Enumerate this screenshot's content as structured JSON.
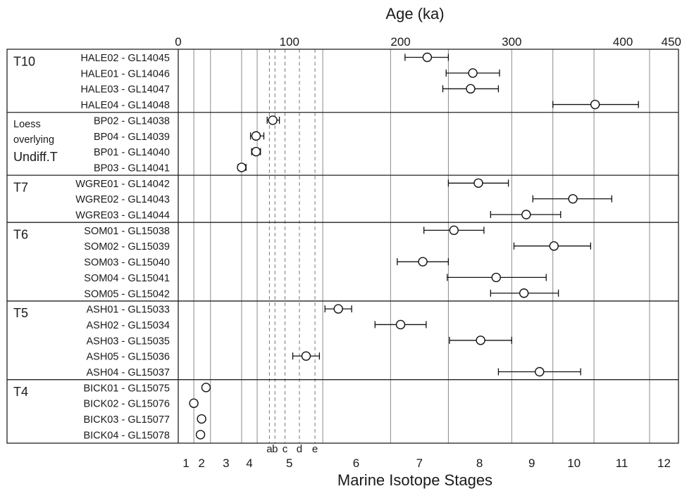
{
  "chart_data": {
    "type": "scatter",
    "title": "",
    "xlabel_top": "Age (ka)",
    "xlabel_bottom": "Marine Isotope Stages",
    "xlim": [
      0,
      450
    ],
    "x_ticks": [
      {
        "value": 0,
        "label": "0"
      },
      {
        "value": 100,
        "label": "100"
      },
      {
        "value": 200,
        "label": "200"
      },
      {
        "value": 300,
        "label": "300"
      },
      {
        "value": 400,
        "label": "400"
      },
      {
        "value": 450,
        "label": "450"
      }
    ],
    "mis_boundaries": [
      14,
      29,
      57,
      71,
      130,
      191,
      243,
      300,
      337,
      374,
      424
    ],
    "mis_labels": [
      {
        "label": "1",
        "x": 7
      },
      {
        "label": "2",
        "x": 21
      },
      {
        "label": "3",
        "x": 43
      },
      {
        "label": "4",
        "x": 64
      },
      {
        "label": "5",
        "x": 100
      },
      {
        "label": "6",
        "x": 160
      },
      {
        "label": "7",
        "x": 217
      },
      {
        "label": "8",
        "x": 271
      },
      {
        "label": "9",
        "x": 318
      },
      {
        "label": "10",
        "x": 356
      },
      {
        "label": "11",
        "x": 399
      },
      {
        "label": "12",
        "x": 437
      }
    ],
    "substage_markers": [
      {
        "label": "a",
        "x": 82
      },
      {
        "label": "b",
        "x": 87
      },
      {
        "label": "c",
        "x": 96
      },
      {
        "label": "d",
        "x": 109
      },
      {
        "label": "e",
        "x": 123
      }
    ],
    "groups": [
      {
        "name": "T10",
        "samples": [
          {
            "label": "HALE02 - GL14045",
            "age": 224,
            "err_low": 204,
            "err_high": 243
          },
          {
            "label": "HALE01 - GL14046",
            "age": 265,
            "err_low": 241,
            "err_high": 289
          },
          {
            "label": "HALE03 - GL14047",
            "age": 263,
            "err_low": 238,
            "err_high": 288
          },
          {
            "label": "HALE04 - GL14048",
            "age": 375,
            "err_low": 337,
            "err_high": 414
          }
        ]
      },
      {
        "name": [
          "Loess",
          "overlying",
          "Undiff.T"
        ],
        "samples": [
          {
            "label": "BP02 - GL14038",
            "age": 85,
            "err_low": 80,
            "err_high": 91
          },
          {
            "label": "BP04 - GL14039",
            "age": 70,
            "err_low": 65,
            "err_high": 77
          },
          {
            "label": "BP01 - GL14040",
            "age": 70,
            "err_low": 66,
            "err_high": 74
          },
          {
            "label": "BP03 - GL14041",
            "age": 57,
            "err_low": 54,
            "err_high": 61
          }
        ]
      },
      {
        "name": "T7",
        "samples": [
          {
            "label": "WGRE01 - GL14042",
            "age": 270,
            "err_low": 243,
            "err_high": 297
          },
          {
            "label": "WGRE02 - GL14043",
            "age": 355,
            "err_low": 319,
            "err_high": 390
          },
          {
            "label": "WGRE03 - GL14044",
            "age": 313,
            "err_low": 281,
            "err_high": 344
          }
        ]
      },
      {
        "name": "T6",
        "samples": [
          {
            "label": "SOM01 - GL15038",
            "age": 248,
            "err_low": 221,
            "err_high": 275
          },
          {
            "label": "SOM02 - GL15039",
            "age": 338,
            "err_low": 302,
            "err_high": 371
          },
          {
            "label": "SOM03 - GL15040",
            "age": 220,
            "err_low": 197,
            "err_high": 243
          },
          {
            "label": "SOM04 - GL15041",
            "age": 286,
            "err_low": 242,
            "err_high": 331
          },
          {
            "label": "SOM05 - GL15042",
            "age": 311,
            "err_low": 281,
            "err_high": 342
          }
        ]
      },
      {
        "name": "T5",
        "samples": [
          {
            "label": "ASH01 - GL15033",
            "age": 144,
            "err_low": 132,
            "err_high": 156
          },
          {
            "label": "ASH02 - GL15034",
            "age": 200,
            "err_low": 177,
            "err_high": 223
          },
          {
            "label": "ASH03 - GL15035",
            "age": 272,
            "err_low": 244,
            "err_high": 300
          },
          {
            "label": "ASH05 - GL15036",
            "age": 115,
            "err_low": 103,
            "err_high": 127
          },
          {
            "label": "ASH04 - GL15037",
            "age": 325,
            "err_low": 288,
            "err_high": 362
          }
        ]
      },
      {
        "name": "T4",
        "samples": [
          {
            "label": "BICK01 - GL15075",
            "age": 25,
            "err_low": 23,
            "err_high": 27
          },
          {
            "label": "BICK02 - GL15076",
            "age": 14,
            "err_low": 12,
            "err_high": 16
          },
          {
            "label": "BICK03 - GL15077",
            "age": 21,
            "err_low": 19,
            "err_high": 23
          },
          {
            "label": "BICK04 - GL15078",
            "age": 20,
            "err_low": 18,
            "err_high": 22
          }
        ]
      }
    ],
    "grid": true,
    "legend": "none"
  }
}
